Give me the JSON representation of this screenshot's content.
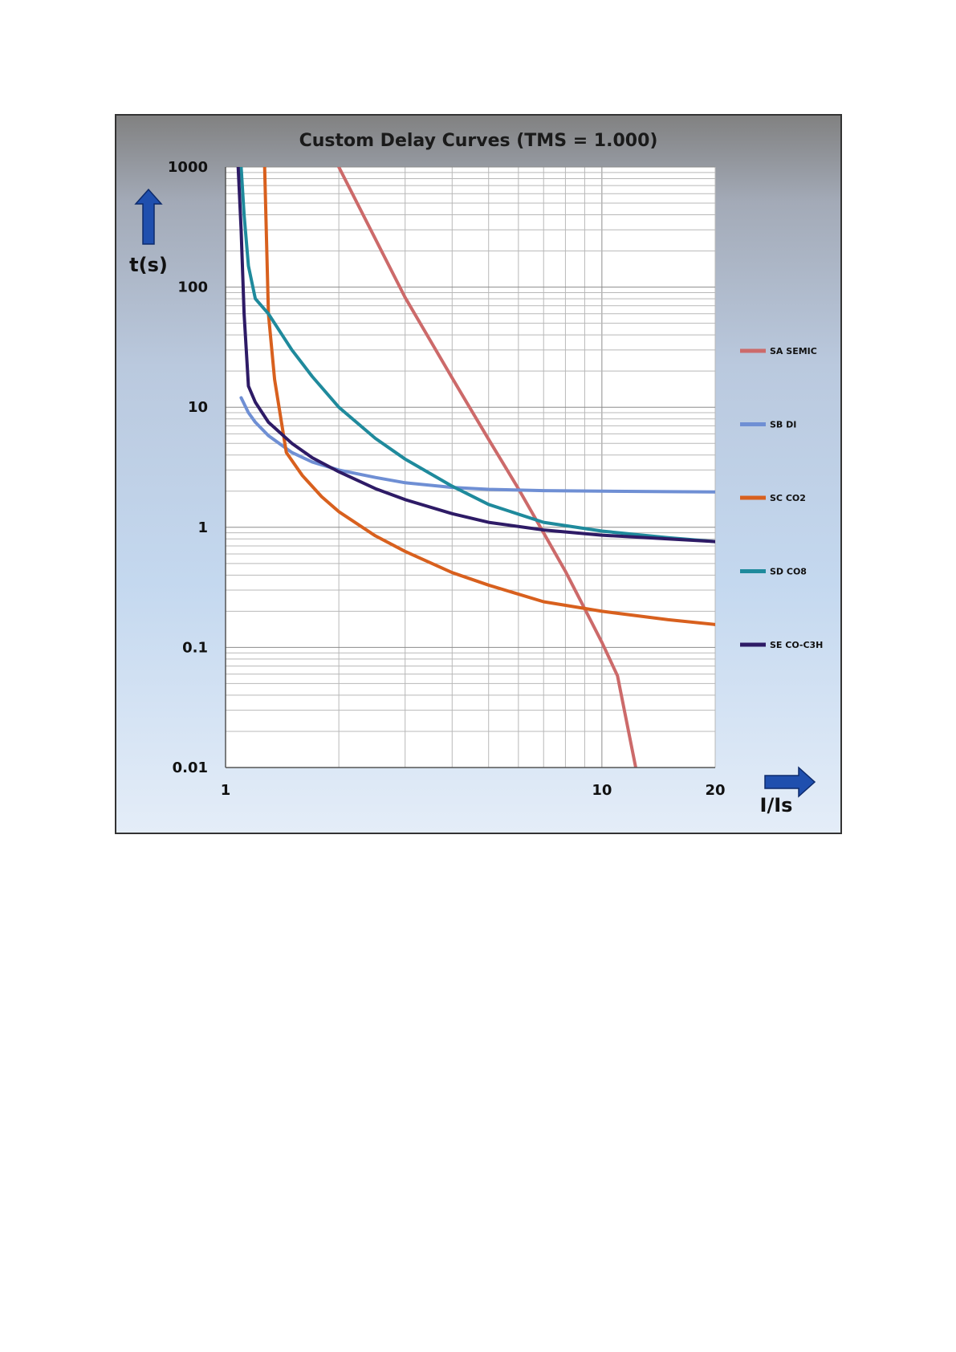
{
  "chart_data": {
    "type": "line",
    "title": "Custom Delay Curves (TMS = 1.000)",
    "xlabel": "I/Is",
    "ylabel": "t(s)",
    "x_scale": "log",
    "y_scale": "log",
    "xlim": [
      1,
      20
    ],
    "ylim": [
      0.01,
      1000
    ],
    "x_ticks": [
      "1",
      "10",
      "20"
    ],
    "y_ticks": [
      "1000",
      "100",
      "10",
      "1",
      "0.1",
      "0.01"
    ],
    "grid": true,
    "legend_position": "right",
    "series": [
      {
        "name": "SA SEMIC",
        "color": "#cc6a6a",
        "x": [
          2.0,
          3.0,
          4.0,
          5.0,
          6.0,
          7.0,
          8.0,
          9.0,
          10.0,
          11.0,
          12.3
        ],
        "y": [
          1000,
          82,
          17.5,
          5.4,
          2.1,
          0.9,
          0.43,
          0.21,
          0.11,
          0.058,
          0.01
        ]
      },
      {
        "name": "SB DI",
        "color": "#6f8fd4",
        "x": [
          1.1,
          1.15,
          1.2,
          1.3,
          1.5,
          1.7,
          2.0,
          2.5,
          3.0,
          4.0,
          5.0,
          7.0,
          10.0,
          15.0,
          20.0
        ],
        "y": [
          12,
          9,
          7.5,
          5.8,
          4.2,
          3.5,
          3.0,
          2.6,
          2.35,
          2.15,
          2.07,
          2.02,
          2.0,
          1.98,
          1.97
        ]
      },
      {
        "name": "SC CO2",
        "color": "#d8601e",
        "x": [
          1.27,
          1.3,
          1.35,
          1.45,
          1.6,
          1.8,
          2.0,
          2.5,
          3.0,
          4.0,
          5.0,
          7.0,
          10.0,
          15.0,
          20.0
        ],
        "y": [
          1000,
          60,
          17,
          4.2,
          2.7,
          1.8,
          1.35,
          0.85,
          0.63,
          0.42,
          0.33,
          0.24,
          0.2,
          0.17,
          0.155
        ]
      },
      {
        "name": "SD CO8",
        "color": "#1f8a9c",
        "x": [
          1.1,
          1.12,
          1.15,
          1.2,
          1.3,
          1.5,
          1.7,
          2.0,
          2.5,
          3.0,
          4.0,
          5.0,
          7.0,
          10.0,
          15.0,
          20.0
        ],
        "y": [
          1000,
          400,
          150,
          80,
          60,
          30,
          18,
          10,
          5.5,
          3.7,
          2.2,
          1.55,
          1.1,
          0.93,
          0.82,
          0.76
        ]
      },
      {
        "name": "SE CO-C3H",
        "color": "#2e1b66",
        "x": [
          1.08,
          1.1,
          1.12,
          1.15,
          1.2,
          1.3,
          1.5,
          1.7,
          2.0,
          2.5,
          3.0,
          4.0,
          5.0,
          7.0,
          10.0,
          15.0,
          20.0
        ],
        "y": [
          1000,
          300,
          60,
          15,
          11,
          7.5,
          5.0,
          3.8,
          2.9,
          2.1,
          1.7,
          1.3,
          1.1,
          0.95,
          0.86,
          0.8,
          0.76
        ]
      }
    ]
  }
}
